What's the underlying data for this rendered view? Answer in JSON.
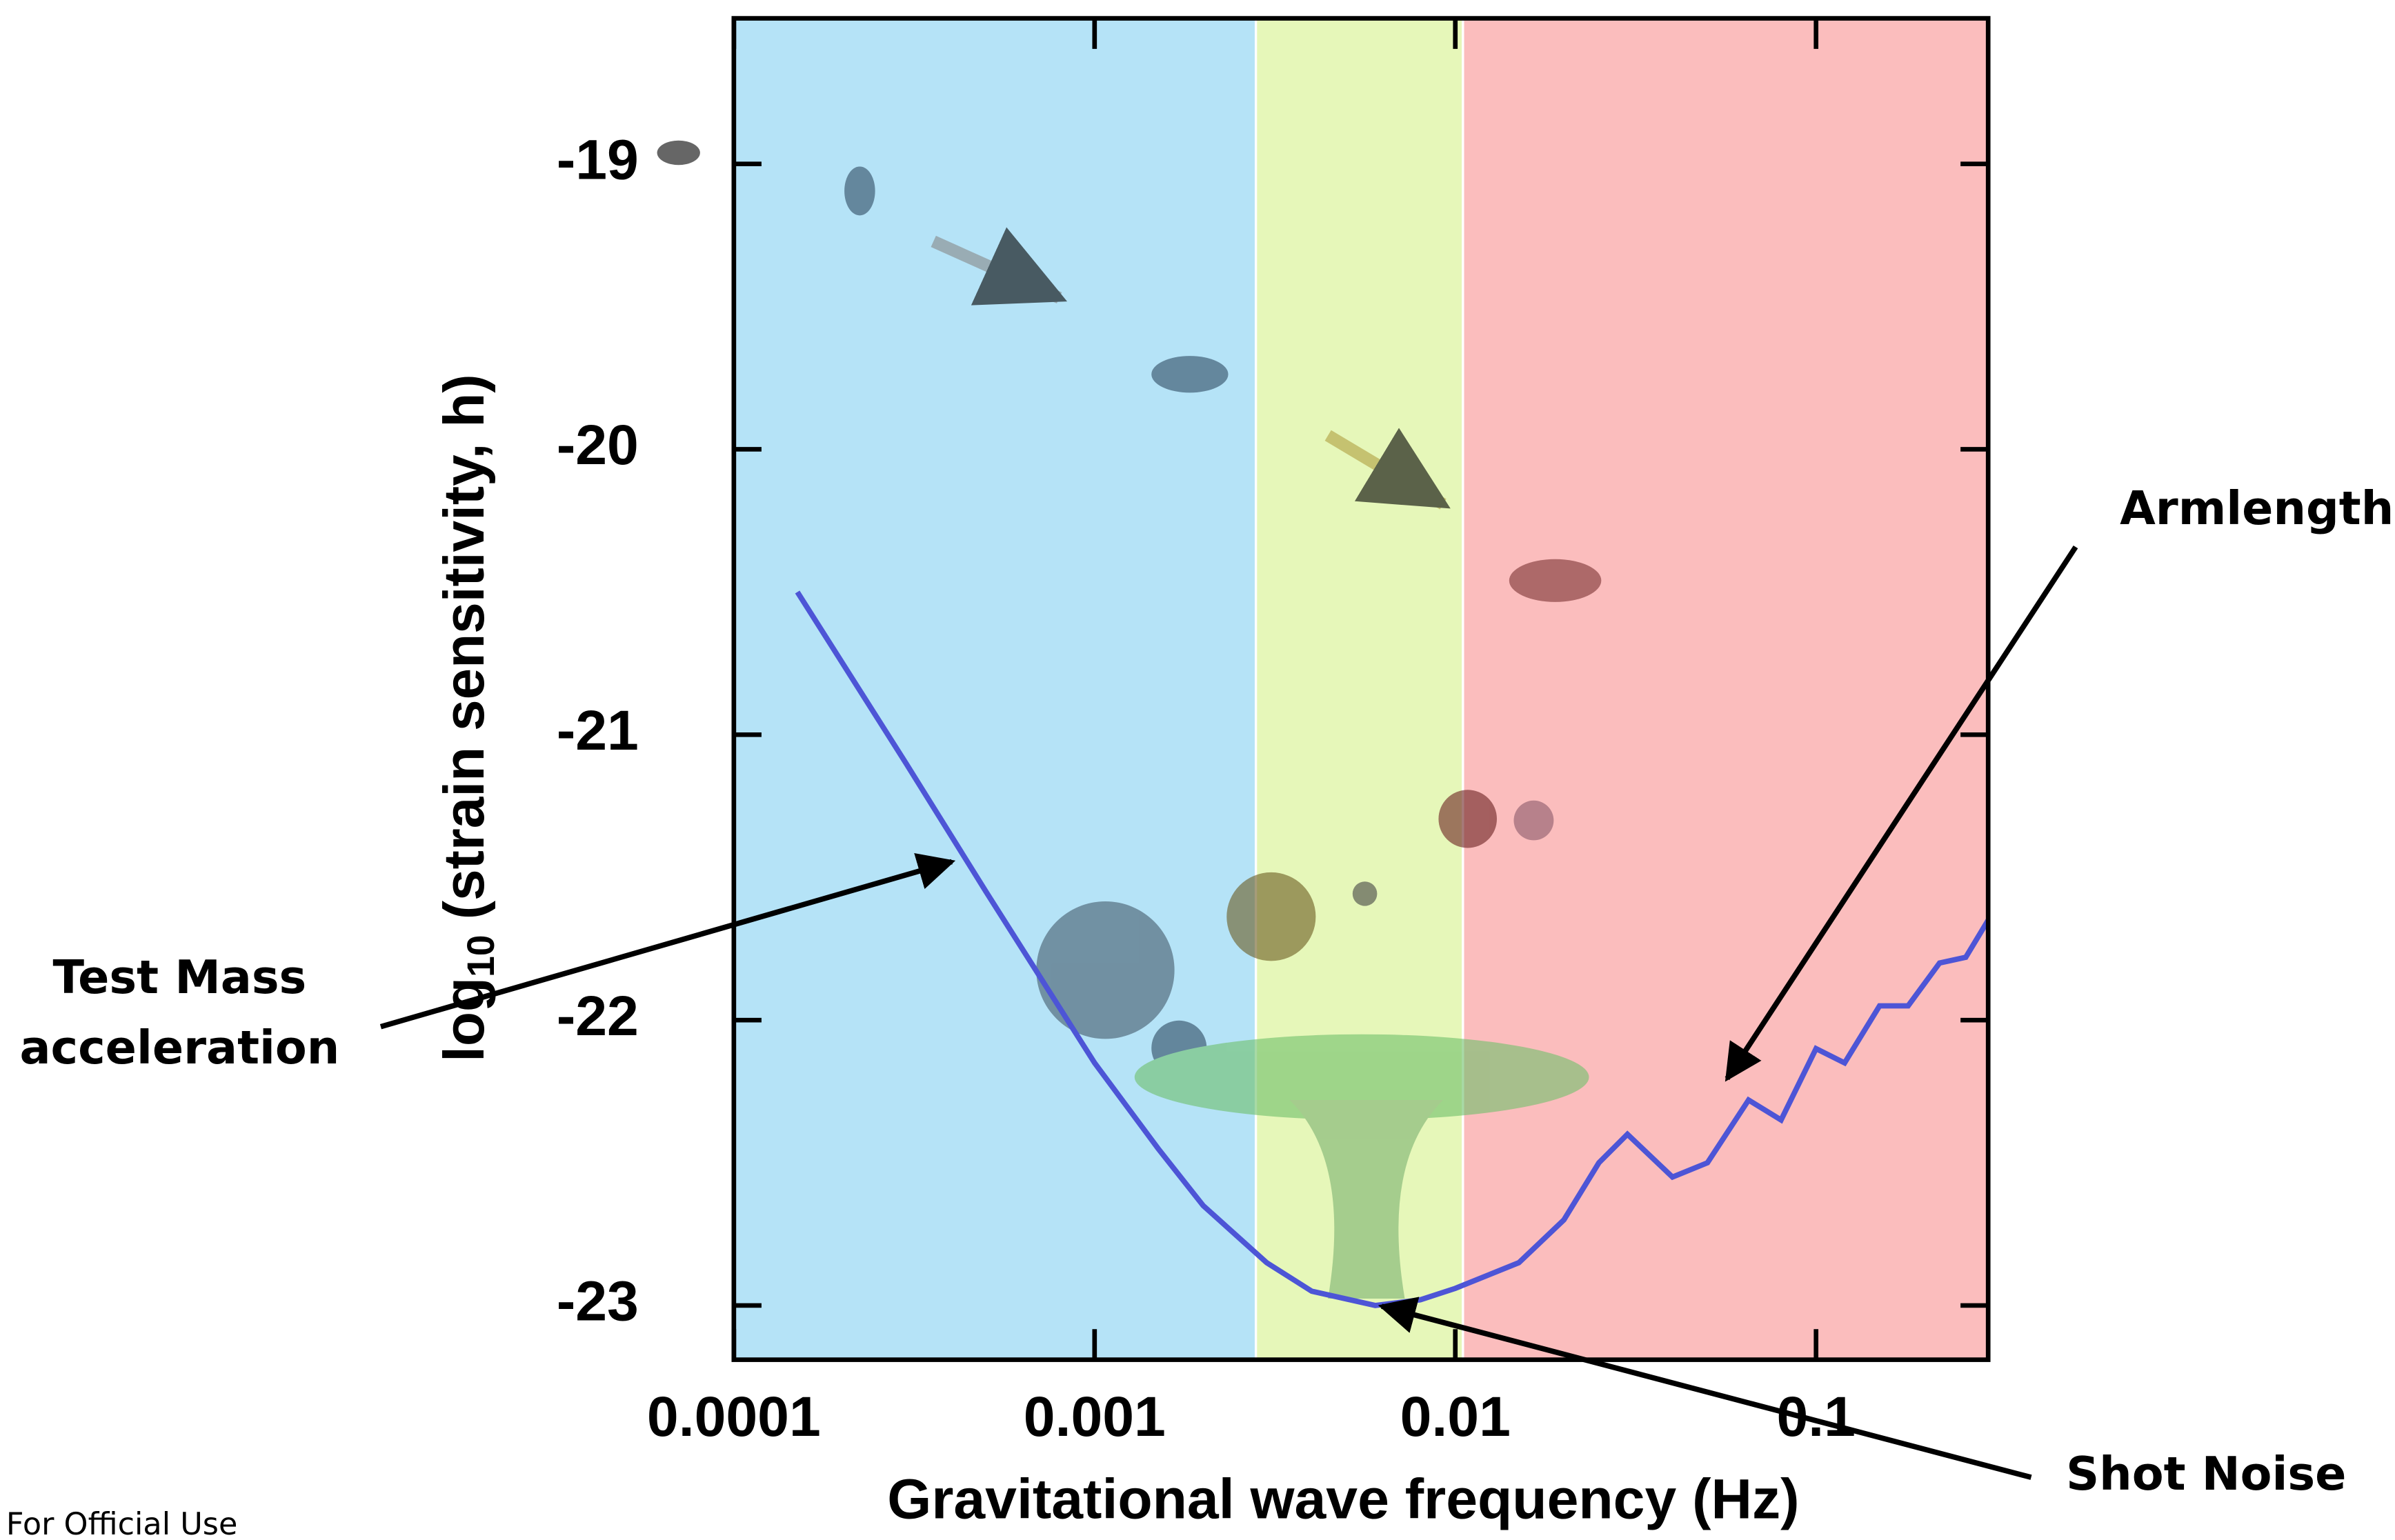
{
  "chart_data": {
    "type": "line",
    "xlabel": "Gravitational wave frequency (Hz)",
    "ylabel": {
      "base": "log",
      "subscript": "10",
      "text": "(strain sensitivity, h)"
    },
    "x_scale": "log",
    "xlim": [
      0.0001,
      0.3
    ],
    "xticks": [
      0.0001,
      0.001,
      0.01,
      0.1
    ],
    "ylim": [
      -23.19,
      -18.49
    ],
    "yticks": [
      -19,
      -20,
      -21,
      -22,
      -23
    ],
    "bands": [
      {
        "from": 0.0001,
        "to": 0.0028,
        "color": "#b5e3f7"
      },
      {
        "from": 0.0028,
        "to": 0.0105,
        "color": "#e6f7b9"
      },
      {
        "from": 0.0105,
        "to": 0.3,
        "color": "#fbbdbd"
      }
    ],
    "series": [
      {
        "color": "#4d55d6",
        "x": [
          0.00015,
          0.0003,
          0.0005,
          0.001,
          0.0015,
          0.002,
          0.003,
          0.004,
          0.006,
          0.008,
          0.01,
          0.015,
          0.02,
          0.025,
          0.03,
          0.04,
          0.05,
          0.065,
          0.08,
          0.1,
          0.12,
          0.15,
          0.18,
          0.22,
          0.26,
          0.3
        ],
        "values": [
          -20.5,
          -21.1,
          -21.55,
          -22.15,
          -22.45,
          -22.65,
          -22.85,
          -22.95,
          -23.0,
          -22.98,
          -22.94,
          -22.85,
          -22.7,
          -22.5,
          -22.4,
          -22.55,
          -22.5,
          -22.28,
          -22.35,
          -22.1,
          -22.15,
          -21.95,
          -21.95,
          -21.8,
          -21.78,
          -21.65
        ]
      }
    ],
    "annotations": [
      {
        "lines": [
          "Test Mass",
          "acceleration"
        ]
      },
      {
        "lines": [
          "Armlength"
        ]
      },
      {
        "lines": [
          "Shot Noise"
        ]
      }
    ],
    "footer": "For Official Use"
  }
}
